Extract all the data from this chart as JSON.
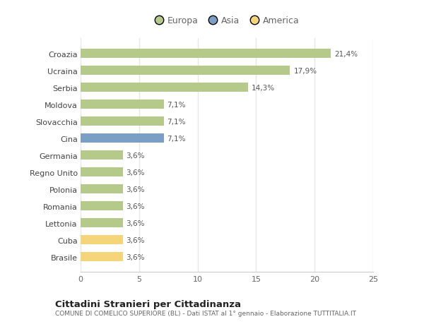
{
  "categories": [
    "Brasile",
    "Cuba",
    "Lettonia",
    "Romania",
    "Polonia",
    "Regno Unito",
    "Germania",
    "Cina",
    "Slovacchia",
    "Moldova",
    "Serbia",
    "Ucraina",
    "Croazia"
  ],
  "values": [
    3.6,
    3.6,
    3.6,
    3.6,
    3.6,
    3.6,
    3.6,
    7.1,
    7.1,
    7.1,
    14.3,
    17.9,
    21.4
  ],
  "labels": [
    "3,6%",
    "3,6%",
    "3,6%",
    "3,6%",
    "3,6%",
    "3,6%",
    "3,6%",
    "7,1%",
    "7,1%",
    "7,1%",
    "14,3%",
    "17,9%",
    "21,4%"
  ],
  "colors": [
    "#f5d57a",
    "#f5d57a",
    "#b5c98a",
    "#b5c98a",
    "#b5c98a",
    "#b5c98a",
    "#b5c98a",
    "#7a9ec4",
    "#b5c98a",
    "#b5c98a",
    "#b5c98a",
    "#b5c98a",
    "#b5c98a"
  ],
  "legend": [
    {
      "label": "Europa",
      "color": "#b5c98a"
    },
    {
      "label": "Asia",
      "color": "#7a9ec4"
    },
    {
      "label": "America",
      "color": "#f5d57a"
    }
  ],
  "xlim": [
    0,
    25
  ],
  "xticks": [
    0,
    5,
    10,
    15,
    20,
    25
  ],
  "title": "Cittadini Stranieri per Cittadinanza",
  "subtitle": "COMUNE DI COMELICO SUPERIORE (BL) - Dati ISTAT al 1° gennaio - Elaborazione TUTTITALIA.IT",
  "background_color": "#ffffff",
  "grid_color": "#e8e8e8",
  "bar_height": 0.55
}
